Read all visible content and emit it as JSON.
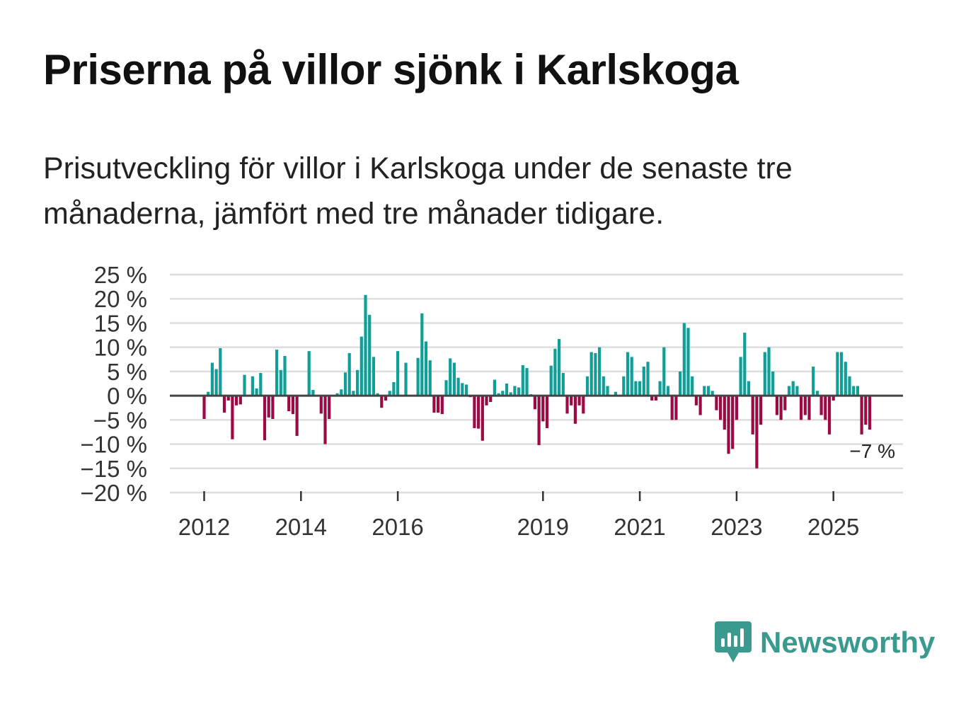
{
  "title": "Priserna på villor sjönk i Karlskoga",
  "subtitle": "Prisutveckling för villor i Karlskoga under de senaste tre månaderna, jämfört med tre månader tidigare.",
  "brand": {
    "name": "Newsworthy",
    "color": "#3a9a8f"
  },
  "colors": {
    "positive": "#119e96",
    "negative": "#9b0a45",
    "grid": "#dddddd",
    "zero": "#444444"
  },
  "chart_data": {
    "type": "bar",
    "title": "Priserna på villor sjönk i Karlskoga",
    "xlabel": "",
    "ylabel": "",
    "ylim": [
      -20,
      25
    ],
    "yticks": [
      25,
      20,
      15,
      10,
      5,
      0,
      -5,
      -10,
      -15,
      -20
    ],
    "ytick_labels": [
      "25 %",
      "20 %",
      "15 %",
      "10 %",
      "5 %",
      "0 %",
      "−5 %",
      "−10 %",
      "−15 %",
      "−20 %"
    ],
    "xtick_labels": [
      "2012",
      "2014",
      "2016",
      "2019",
      "2021",
      "2023",
      "2025"
    ],
    "xtick_index": [
      0,
      24,
      48,
      84,
      108,
      132,
      156
    ],
    "annotation": {
      "text": "−7 %",
      "index": 165,
      "value": -7
    },
    "values": [
      -4.8,
      0.8,
      6.8,
      5.5,
      9.8,
      -3.5,
      -1.0,
      -9.0,
      -2.0,
      -1.8,
      4.3,
      0,
      4.0,
      1.5,
      4.7,
      -9.2,
      -4.5,
      -4.8,
      9.5,
      5.3,
      8.2,
      -3.2,
      -3.8,
      -8.3,
      0,
      0,
      9.2,
      1.2,
      0,
      -3.7,
      -10.0,
      -4.8,
      0,
      0.5,
      1.3,
      4.8,
      8.8,
      1.0,
      5.3,
      12.2,
      20.8,
      16.7,
      8.0,
      0.5,
      -2.5,
      -1.0,
      1.0,
      2.8,
      9.2,
      0,
      6.8,
      0,
      0,
      7.8,
      17.0,
      11.2,
      7.3,
      -3.5,
      -3.5,
      -3.8,
      3.2,
      7.7,
      6.8,
      3.7,
      2.6,
      2.3,
      -0.3,
      -6.7,
      -6.8,
      -9.3,
      -2.0,
      -1.3,
      3.3,
      0.5,
      1.0,
      2.5,
      0.7,
      2.0,
      1.7,
      6.3,
      5.7,
      0.3,
      -2.8,
      -10.2,
      -5.3,
      -6.7,
      6.2,
      9.7,
      11.7,
      4.7,
      -3.7,
      -2.0,
      -5.8,
      -2.0,
      -3.7,
      4.0,
      9.0,
      8.8,
      10.0,
      4.0,
      2.0,
      0,
      0.8,
      0,
      4.0,
      9.0,
      8.0,
      3.0,
      3.0,
      6.0,
      7.0,
      -1.0,
      -1.0,
      3.0,
      10.0,
      2.0,
      -5.0,
      -5.0,
      5.0,
      15.0,
      14.0,
      4.0,
      -2.0,
      -4.0,
      2.0,
      2.0,
      1.0,
      -3.0,
      -5.0,
      -7.0,
      -12.0,
      -11.0,
      -5.0,
      8.0,
      13.0,
      3.0,
      -8.0,
      -15.0,
      -6.0,
      9.0,
      10.0,
      5.0,
      -4.0,
      -5.0,
      -3.0,
      2.0,
      3.0,
      2.0,
      -5.0,
      -4.0,
      -5.0,
      6.0,
      1.0,
      -4.0,
      -5.0,
      -8.0,
      -1.0,
      9.0,
      9.0,
      7.0,
      4.0,
      2.0,
      2.0,
      -8.0,
      -6.0,
      -7.0
    ]
  }
}
